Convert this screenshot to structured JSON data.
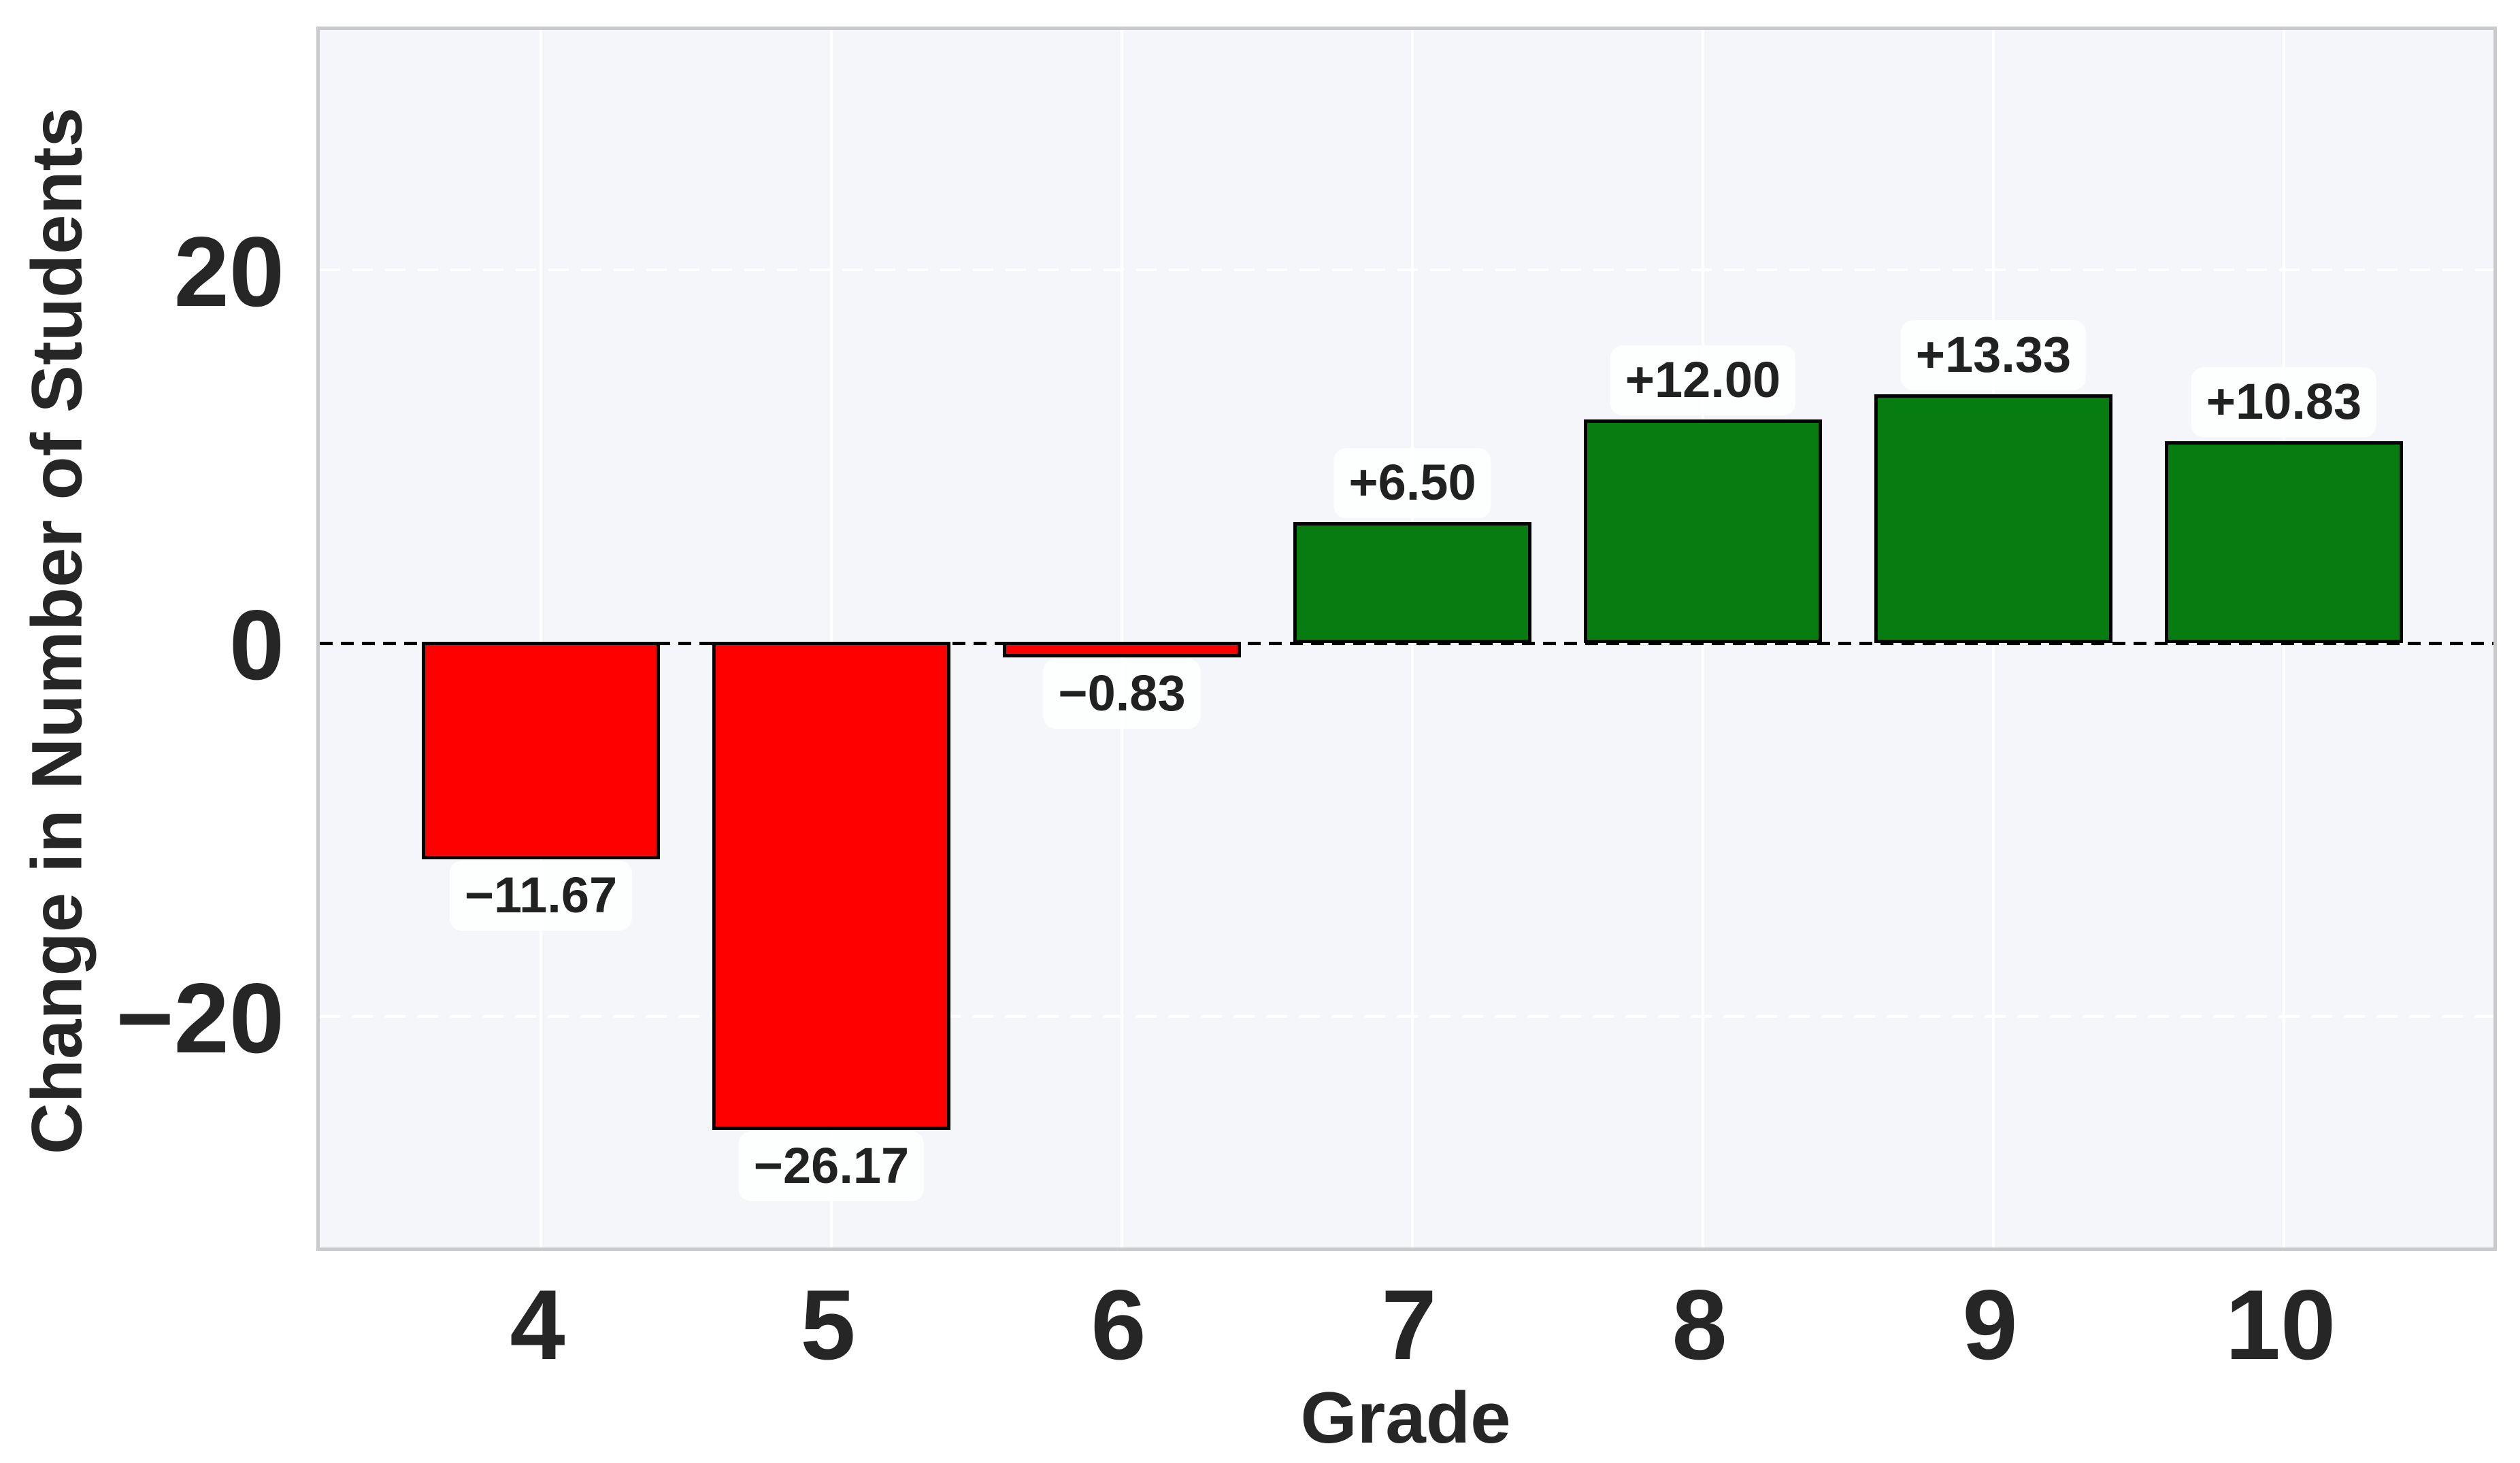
{
  "chart_data": {
    "type": "bar",
    "title": "",
    "xlabel": "Grade",
    "ylabel": "Change in Number of Students",
    "categories": [
      "4",
      "5",
      "6",
      "7",
      "8",
      "9",
      "10"
    ],
    "values": [
      -11.67,
      -26.17,
      -0.83,
      6.5,
      12.0,
      13.33,
      10.83
    ],
    "value_labels": [
      "−11.67",
      "−26.17",
      "−0.83",
      "+6.50",
      "+12.00",
      "+13.33",
      "+10.83"
    ],
    "yticks": [
      {
        "value": 20,
        "label": "20"
      },
      {
        "value": 0,
        "label": "0"
      },
      {
        "value": -20,
        "label": "−20"
      }
    ],
    "ylim": [
      -33,
      33
    ],
    "grid": "on",
    "grid_style": {
      "vertical": "solid",
      "horizontal": "dashed"
    },
    "zero_line": "dashed",
    "legend": "none",
    "colors": {
      "positive_bar": "#077c10",
      "negative_bar": "#ff0000",
      "bar_edge": "#000000",
      "zero_line": "#000000",
      "grid_line": "#ffffff",
      "plot_background": "#f5f6f9",
      "figure_background": "#ffffff",
      "spine": "#c9cacc",
      "text": "#262626"
    }
  }
}
